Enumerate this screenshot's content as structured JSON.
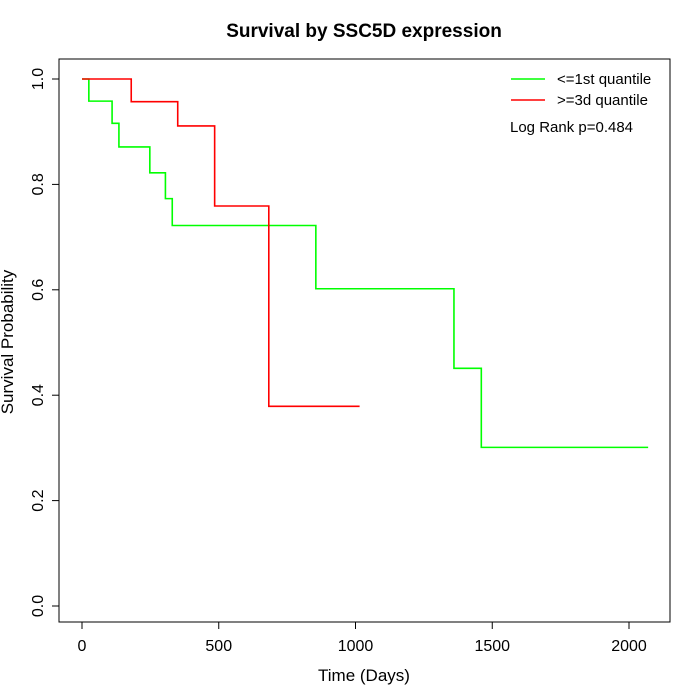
{
  "chart_data": {
    "type": "line",
    "title": "Survival by SSC5D expression",
    "xlabel": "Time (Days)",
    "ylabel": "Survival Probability",
    "xlim": [
      0,
      2070
    ],
    "ylim": [
      0,
      1.0
    ],
    "xticks": [
      0,
      500,
      1000,
      1500,
      2000
    ],
    "yticks": [
      0.0,
      0.2,
      0.4,
      0.6,
      0.8,
      1.0
    ],
    "xtick_labels": [
      "0",
      "500",
      "1000",
      "1500",
      "2000"
    ],
    "ytick_labels": [
      "0.0",
      "0.2",
      "0.4",
      "0.6",
      "0.8",
      "1.0"
    ],
    "step": true,
    "legend_position": "top-right",
    "annotation": "Log Rank p=0.484",
    "series": [
      {
        "name": "<=1st quantile",
        "color": "#00ff00",
        "x": [
          0,
          25,
          110,
          135,
          248,
          305,
          330,
          855,
          1360,
          1460,
          2070
        ],
        "y": [
          1.0,
          0.958,
          0.916,
          0.871,
          0.822,
          0.773,
          0.722,
          0.602,
          0.451,
          0.301,
          0.301
        ]
      },
      {
        "name": ">=3d quantile",
        "color": "#ff0000",
        "x": [
          0,
          180,
          350,
          485,
          683,
          1015
        ],
        "y": [
          1.0,
          0.957,
          0.911,
          0.759,
          0.379,
          0.379
        ]
      }
    ]
  }
}
